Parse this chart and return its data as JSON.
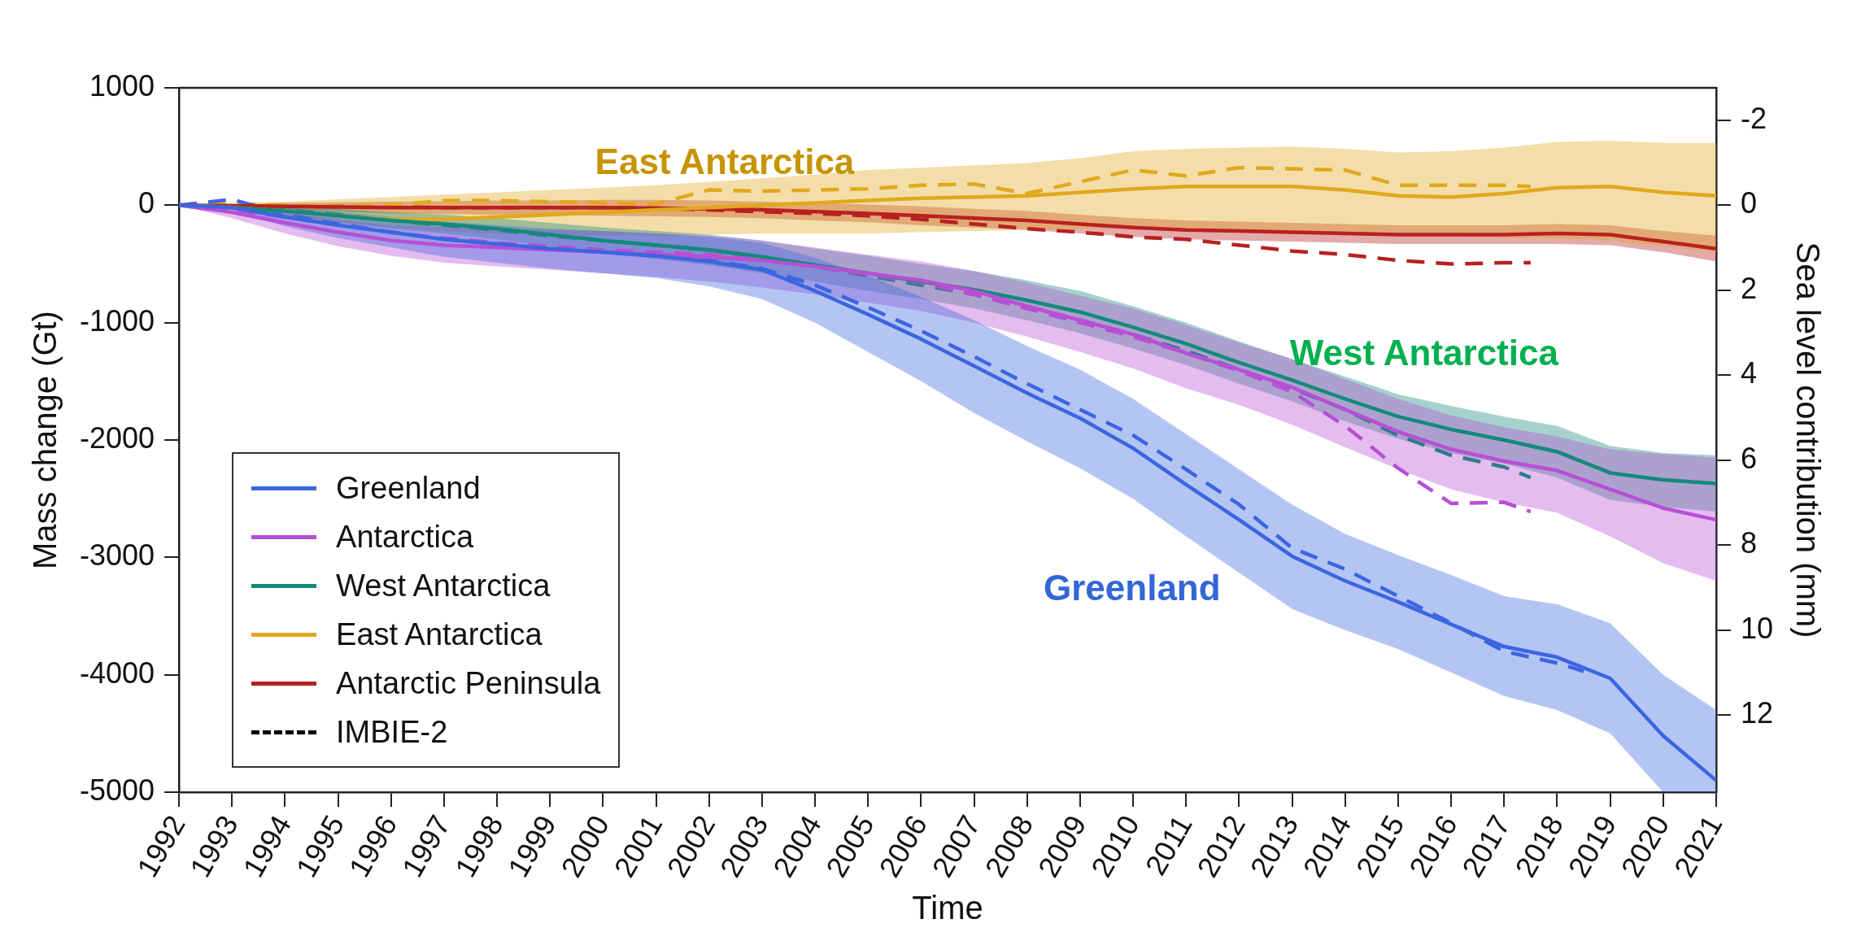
{
  "chart_data": {
    "type": "line",
    "xlabel": "Time",
    "ylabel": "Mass change (Gt)",
    "y2label": "Sea level contribution (mm)",
    "x": [
      1992,
      1993,
      1994,
      1995,
      1996,
      1997,
      1998,
      1999,
      2000,
      2001,
      2002,
      2003,
      2004,
      2005,
      2006,
      2007,
      2008,
      2009,
      2010,
      2011,
      2012,
      2013,
      2014,
      2015,
      2016,
      2017,
      2018,
      2019,
      2020,
      2021
    ],
    "xlim": [
      1992,
      2021
    ],
    "xticks": [
      1992,
      1993,
      1994,
      1995,
      1996,
      1997,
      1998,
      1999,
      2000,
      2001,
      2002,
      2003,
      2004,
      2005,
      2006,
      2007,
      2008,
      2009,
      2010,
      2011,
      2012,
      2013,
      2014,
      2015,
      2016,
      2017,
      2018,
      2019,
      2020,
      2021
    ],
    "ylim": [
      -5000,
      1000
    ],
    "yticks": [
      -5000,
      -4000,
      -3000,
      -2000,
      -1000,
      0,
      1000
    ],
    "y2lim": [
      13.81,
      -2.76
    ],
    "y2ticks": [
      -2,
      0,
      2,
      4,
      6,
      8,
      10,
      12
    ],
    "grid": false,
    "legend": "bottom left",
    "marker": "none",
    "series": [
      {
        "name": "Greenland",
        "color": "#3a66e0",
        "line_style": "solid",
        "values": [
          0,
          -20,
          -100,
          -170,
          -230,
          -290,
          -330,
          -370,
          -400,
          -430,
          -480,
          -550,
          -730,
          -930,
          -1140,
          -1370,
          -1600,
          -1815,
          -2070,
          -2380,
          -2680,
          -2990,
          -3200,
          -3380,
          -3570,
          -3760,
          -3850,
          -4030,
          -4520,
          -4900
        ],
        "upper": [
          0,
          0,
          -20,
          -60,
          -100,
          -140,
          -170,
          -200,
          -220,
          -240,
          -270,
          -320,
          -450,
          -600,
          -780,
          -980,
          -1200,
          -1400,
          -1650,
          -1950,
          -2250,
          -2550,
          -2800,
          -2980,
          -3150,
          -3330,
          -3400,
          -3560,
          -4000,
          -4300
        ],
        "lower": [
          0,
          -40,
          -180,
          -280,
          -360,
          -440,
          -490,
          -540,
          -580,
          -620,
          -690,
          -800,
          -1000,
          -1250,
          -1500,
          -1770,
          -2010,
          -2240,
          -2500,
          -2820,
          -3130,
          -3440,
          -3620,
          -3780,
          -3980,
          -4180,
          -4300,
          -4500,
          -5000,
          -5000
        ]
      },
      {
        "name": "Antarctica",
        "color": "#b84fd6",
        "line_style": "solid",
        "values": [
          0,
          -60,
          -150,
          -230,
          -300,
          -340,
          -360,
          -380,
          -400,
          -420,
          -440,
          -470,
          -520,
          -580,
          -640,
          -730,
          -860,
          -980,
          -1100,
          -1260,
          -1400,
          -1550,
          -1740,
          -1930,
          -2080,
          -2180,
          -2260,
          -2420,
          -2580,
          -2680
        ],
        "upper": [
          0,
          -10,
          -60,
          -120,
          -170,
          -190,
          -200,
          -210,
          -220,
          -240,
          -260,
          -300,
          -360,
          -420,
          -480,
          -560,
          -660,
          -770,
          -880,
          -1020,
          -1170,
          -1310,
          -1480,
          -1650,
          -1790,
          -1890,
          -1970,
          -2080,
          -2120,
          -2150
        ],
        "lower": [
          0,
          -110,
          -240,
          -350,
          -430,
          -490,
          -520,
          -550,
          -580,
          -610,
          -650,
          -700,
          -760,
          -830,
          -900,
          -1000,
          -1120,
          -1250,
          -1390,
          -1560,
          -1700,
          -1870,
          -2060,
          -2250,
          -2420,
          -2530,
          -2620,
          -2820,
          -3050,
          -3200
        ]
      },
      {
        "name": "West Antarctica",
        "color": "#138a7a",
        "line_style": "solid",
        "values": [
          0,
          -20,
          -50,
          -90,
          -130,
          -160,
          -200,
          -250,
          -300,
          -340,
          -380,
          -440,
          -510,
          -580,
          -650,
          -720,
          -810,
          -910,
          -1040,
          -1180,
          -1340,
          -1490,
          -1650,
          -1800,
          -1910,
          -2000,
          -2100,
          -2280,
          -2340,
          -2370
        ],
        "upper": [
          0,
          0,
          -10,
          -30,
          -60,
          -80,
          -110,
          -150,
          -190,
          -220,
          -250,
          -300,
          -370,
          -430,
          -500,
          -560,
          -640,
          -730,
          -860,
          -1000,
          -1160,
          -1310,
          -1460,
          -1610,
          -1710,
          -1800,
          -1880,
          -2050,
          -2110,
          -2130
        ],
        "lower": [
          0,
          -40,
          -90,
          -150,
          -200,
          -240,
          -290,
          -350,
          -410,
          -460,
          -510,
          -580,
          -650,
          -730,
          -800,
          -880,
          -980,
          -1090,
          -1220,
          -1360,
          -1520,
          -1670,
          -1840,
          -1990,
          -2110,
          -2200,
          -2320,
          -2510,
          -2570,
          -2610
        ]
      },
      {
        "name": "East Antarctica",
        "color": "#e0a91c",
        "line_style": "solid",
        "values": [
          0,
          -20,
          -50,
          -90,
          -120,
          -120,
          -100,
          -80,
          -60,
          -40,
          -20,
          0,
          20,
          40,
          60,
          70,
          80,
          110,
          140,
          160,
          160,
          160,
          130,
          80,
          70,
          100,
          150,
          160,
          110,
          80
        ],
        "upper": [
          0,
          20,
          30,
          50,
          70,
          90,
          110,
          130,
          150,
          170,
          200,
          230,
          260,
          300,
          320,
          340,
          360,
          400,
          460,
          480,
          490,
          500,
          480,
          450,
          460,
          490,
          540,
          550,
          530,
          530
        ],
        "lower": [
          0,
          -40,
          -90,
          -150,
          -190,
          -220,
          -240,
          -250,
          -260,
          -260,
          -250,
          -240,
          -240,
          -240,
          -230,
          -220,
          -210,
          -200,
          -200,
          -200,
          -210,
          -220,
          -240,
          -260,
          -270,
          -280,
          -280,
          -300,
          -350,
          -400
        ]
      },
      {
        "name": "Antarctic Peninsula",
        "color": "#b82020",
        "line_style": "solid",
        "values": [
          0,
          -5,
          -10,
          -15,
          -20,
          -20,
          -20,
          -20,
          -20,
          -25,
          -30,
          -40,
          -55,
          -70,
          -90,
          -110,
          -130,
          -160,
          -190,
          -210,
          -220,
          -230,
          -240,
          -250,
          -250,
          -250,
          -240,
          -250,
          -310,
          -370
        ],
        "upper": [
          0,
          10,
          20,
          25,
          30,
          35,
          40,
          40,
          45,
          45,
          40,
          30,
          20,
          5,
          -10,
          -30,
          -50,
          -80,
          -110,
          -130,
          -140,
          -150,
          -160,
          -170,
          -170,
          -170,
          -160,
          -170,
          -220,
          -260
        ],
        "lower": [
          0,
          -20,
          -40,
          -55,
          -70,
          -75,
          -80,
          -85,
          -90,
          -95,
          -100,
          -110,
          -130,
          -145,
          -170,
          -190,
          -210,
          -240,
          -270,
          -290,
          -300,
          -310,
          -320,
          -330,
          -330,
          -330,
          -330,
          -340,
          -400,
          -480
        ]
      },
      {
        "name": "IMBIE-2",
        "color": "#000000",
        "line_style": "dashed",
        "values": [
          null,
          null,
          null,
          null,
          null,
          null,
          null,
          null,
          null,
          null,
          null,
          null,
          null,
          null,
          null,
          null,
          null,
          null,
          null,
          null,
          null,
          null,
          null,
          null,
          null,
          null,
          null,
          null,
          null,
          null
        ]
      },
      {
        "color": "#3a66e0",
        "line_style": "dashed",
        "x": [
          1992,
          1993,
          1994,
          1995,
          1996,
          1997,
          1998,
          1999,
          2000,
          2001,
          2002,
          2003,
          2004,
          2005,
          2006,
          2007,
          2008,
          2009,
          2010,
          2011,
          2012,
          2013,
          2014,
          2015,
          2016,
          2017,
          2018,
          2018.5
        ],
        "values": [
          0,
          50,
          -80,
          -160,
          -230,
          -290,
          -330,
          -370,
          -400,
          -430,
          -470,
          -540,
          -680,
          -870,
          -1070,
          -1290,
          -1520,
          -1740,
          -1960,
          -2250,
          -2550,
          -2920,
          -3100,
          -3330,
          -3560,
          -3800,
          -3900,
          -3970
        ]
      },
      {
        "color": "#b84fd6",
        "line_style": "dashed",
        "x": [
          1992,
          1993,
          1994,
          1995,
          1996,
          1997,
          1998,
          1999,
          2000,
          2001,
          2002,
          2003,
          2004,
          2005,
          2006,
          2007,
          2008,
          2009,
          2010,
          2011,
          2012,
          2013,
          2014,
          2015,
          2016,
          2017,
          2017.5
        ],
        "values": [
          0,
          -40,
          -100,
          -170,
          -230,
          -280,
          -320,
          -350,
          -380,
          -400,
          -420,
          -460,
          -520,
          -590,
          -660,
          -760,
          -880,
          -1000,
          -1120,
          -1260,
          -1410,
          -1590,
          -1880,
          -2240,
          -2540,
          -2530,
          -2610
        ]
      },
      {
        "color": "#2e7d8c",
        "line_style": "dashed",
        "x": [
          1992,
          1993,
          1994,
          1995,
          1996,
          1997,
          1998,
          1999,
          2000,
          2001,
          2002,
          2003,
          2004,
          2005,
          2006,
          2007,
          2008,
          2009,
          2010,
          2011,
          2012,
          2013,
          2014,
          2015,
          2016,
          2017,
          2017.5
        ],
        "values": [
          0,
          -10,
          -40,
          -80,
          -130,
          -170,
          -210,
          -260,
          -300,
          -340,
          -380,
          -440,
          -520,
          -600,
          -680,
          -760,
          -870,
          -980,
          -1100,
          -1240,
          -1400,
          -1560,
          -1740,
          -1960,
          -2130,
          -2230,
          -2320
        ]
      },
      {
        "color": "#e0a91c",
        "line_style": "dashed",
        "x": [
          1992,
          1993,
          1994,
          1995,
          1996,
          1997,
          1998,
          1999,
          2000,
          2001,
          2002,
          2003,
          2004,
          2005,
          2006,
          2007,
          2008,
          2009,
          2010,
          2011,
          2012,
          2013,
          2014,
          2015,
          2016,
          2017,
          2017.5
        ],
        "values": [
          0,
          10,
          0,
          -10,
          0,
          40,
          40,
          30,
          20,
          10,
          130,
          120,
          130,
          140,
          170,
          180,
          100,
          200,
          300,
          250,
          320,
          310,
          300,
          170,
          170,
          170,
          160
        ]
      },
      {
        "color": "#b82020",
        "line_style": "dashed",
        "x": [
          1992,
          1993,
          1994,
          1995,
          1996,
          1997,
          1998,
          1999,
          2000,
          2001,
          2002,
          2003,
          2004,
          2005,
          2006,
          2007,
          2008,
          2009,
          2010,
          2011,
          2012,
          2013,
          2014,
          2015,
          2016,
          2017,
          2017.5
        ],
        "values": [
          0,
          -5,
          -10,
          -10,
          -15,
          -20,
          -20,
          -20,
          -20,
          -25,
          -40,
          -55,
          -70,
          -90,
          -120,
          -160,
          -200,
          -230,
          -270,
          -290,
          -340,
          -390,
          -420,
          -470,
          -500,
          -490,
          -490
        ]
      }
    ],
    "annotations": [
      "East Antarctica",
      "West Antarctica",
      "Greenland"
    ]
  }
}
